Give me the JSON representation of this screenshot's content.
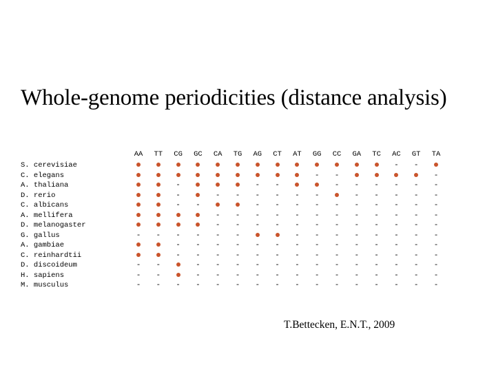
{
  "title": "Whole-genome periodicities (distance analysis)",
  "credit": "T.Bettecken, E.N.T., 2009",
  "dot_color": "#c9542c",
  "columns": [
    "AA",
    "TT",
    "CG",
    "GC",
    "CA",
    "TG",
    "AG",
    "CT",
    "AT",
    "GG",
    "CC",
    "GA",
    "TC",
    "AC",
    "GT",
    "TA"
  ],
  "species": [
    "S. cerevisiae",
    "C. elegans",
    "A. thaliana",
    "D. rerio",
    "C. albicans",
    "A. mellifera",
    "D. melanogaster",
    "G. gallus",
    "A. gambiae",
    "C. reinhardtii",
    "D. discoideum",
    "H. sapiens",
    "M. musculus"
  ],
  "absent_symbol": "-",
  "matrix": [
    [
      1,
      1,
      1,
      1,
      1,
      1,
      1,
      1,
      1,
      1,
      1,
      1,
      1,
      0,
      0,
      1
    ],
    [
      1,
      1,
      1,
      1,
      1,
      1,
      1,
      1,
      1,
      0,
      0,
      1,
      1,
      1,
      1,
      0
    ],
    [
      1,
      1,
      0,
      1,
      1,
      1,
      0,
      0,
      1,
      1,
      0,
      0,
      0,
      0,
      0,
      0
    ],
    [
      1,
      1,
      0,
      1,
      0,
      0,
      0,
      0,
      0,
      0,
      1,
      0,
      0,
      0,
      0,
      0
    ],
    [
      1,
      1,
      0,
      0,
      1,
      1,
      0,
      0,
      0,
      0,
      0,
      0,
      0,
      0,
      0,
      0
    ],
    [
      1,
      1,
      1,
      1,
      0,
      0,
      0,
      0,
      0,
      0,
      0,
      0,
      0,
      0,
      0,
      0
    ],
    [
      1,
      1,
      1,
      1,
      0,
      0,
      0,
      0,
      0,
      0,
      0,
      0,
      0,
      0,
      0,
      0
    ],
    [
      0,
      0,
      0,
      0,
      0,
      0,
      1,
      1,
      0,
      0,
      0,
      0,
      0,
      0,
      0,
      0
    ],
    [
      1,
      1,
      0,
      0,
      0,
      0,
      0,
      0,
      0,
      0,
      0,
      0,
      0,
      0,
      0,
      0
    ],
    [
      1,
      1,
      0,
      0,
      0,
      0,
      0,
      0,
      0,
      0,
      0,
      0,
      0,
      0,
      0,
      0
    ],
    [
      0,
      0,
      1,
      0,
      0,
      0,
      0,
      0,
      0,
      0,
      0,
      0,
      0,
      0,
      0,
      0
    ],
    [
      0,
      0,
      1,
      0,
      0,
      0,
      0,
      0,
      0,
      0,
      0,
      0,
      0,
      0,
      0,
      0
    ],
    [
      0,
      0,
      0,
      0,
      0,
      0,
      0,
      0,
      0,
      0,
      0,
      0,
      0,
      0,
      0,
      0
    ]
  ]
}
